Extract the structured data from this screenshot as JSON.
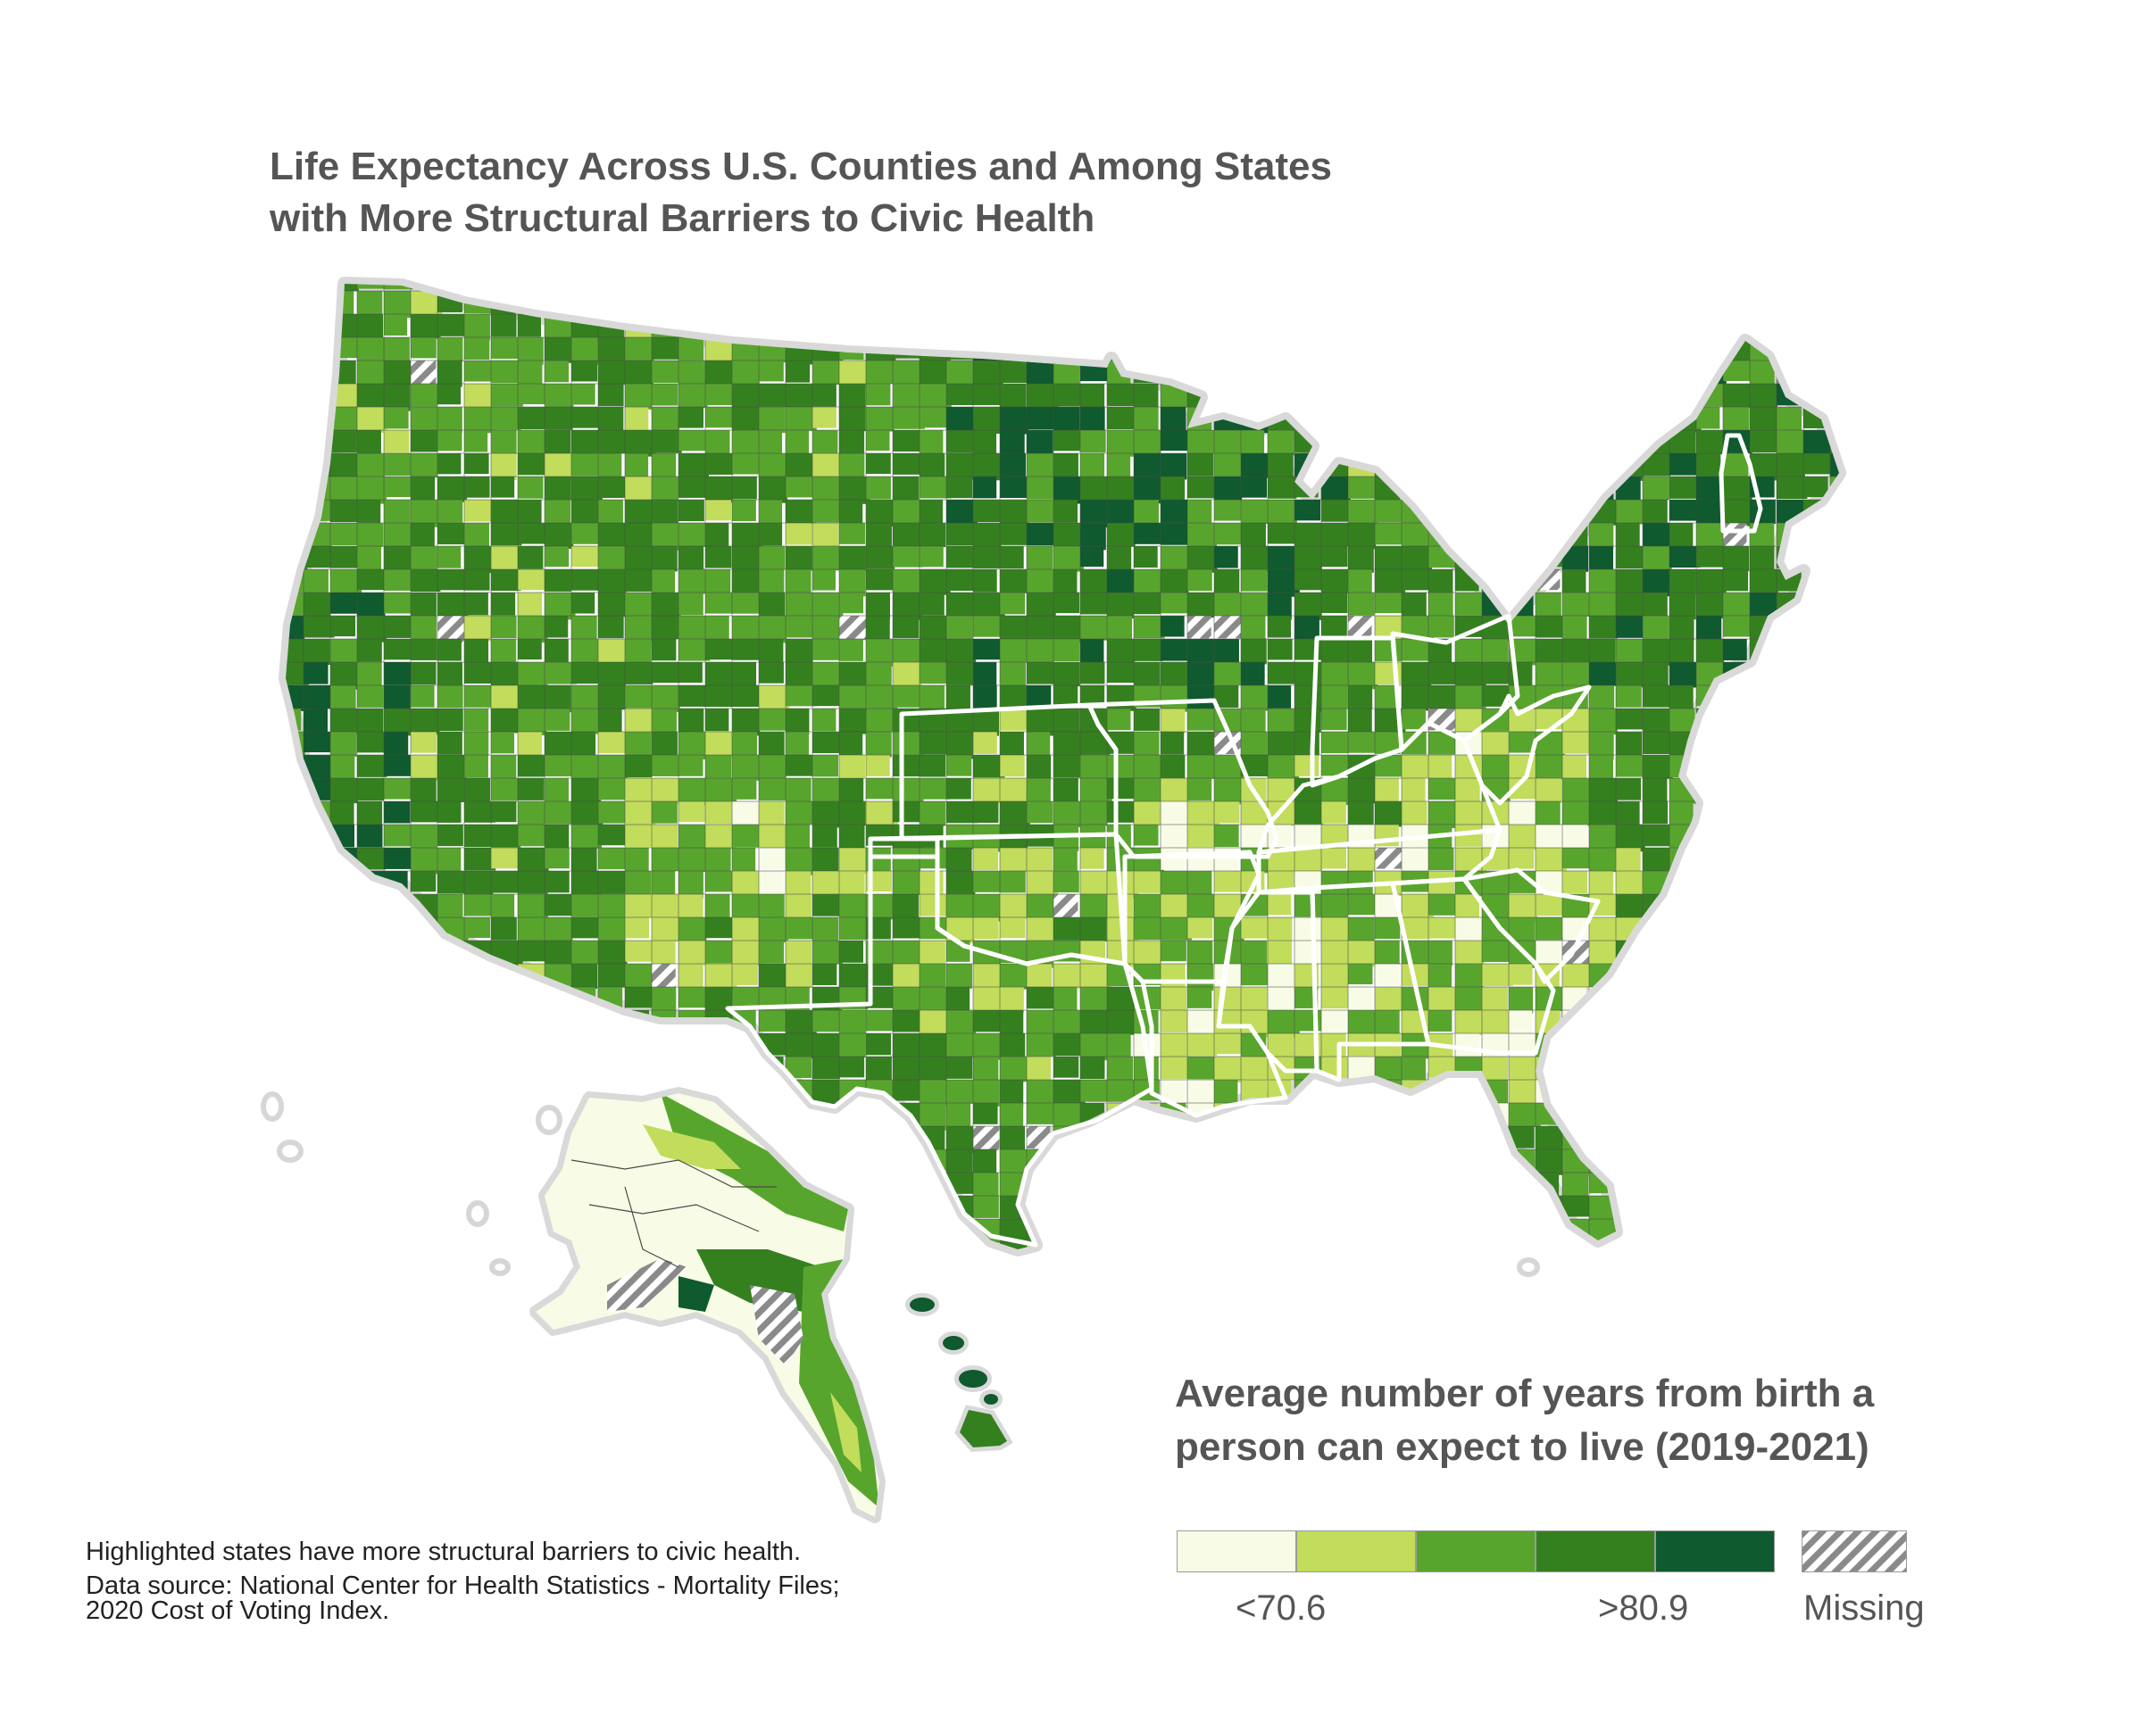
{
  "title": {
    "line1": "Life Expectancy Across U.S. Counties and Among States",
    "line2": "with More Structural Barriers to Civic Health"
  },
  "legend": {
    "title_line1": "Average number of years from birth a",
    "title_line2": "person can expect to live (2019-2021)",
    "bins": [
      {
        "color": "#f8fce6"
      },
      {
        "color": "#c2dc5c"
      },
      {
        "color": "#58a52e"
      },
      {
        "color": "#34801f"
      },
      {
        "color": "#0f5a2e"
      }
    ],
    "low_label": "<70.6",
    "high_label": ">80.9",
    "missing_label": "Missing",
    "missing_color": "#8a8a8a"
  },
  "footnote": {
    "line1": "Highlighted states have more structural barriers to civic health.",
    "line2": "Data source: National Center for Health Statistics - Mortality Files;",
    "line3": "2020 Cost of Voting Index."
  },
  "highlighted_states": [
    "Kansas",
    "Missouri",
    "Oklahoma",
    "Texas",
    "Arkansas",
    "Louisiana",
    "Mississippi",
    "Alabama",
    "Georgia",
    "South Carolina",
    "Tennessee",
    "Kentucky",
    "Indiana",
    "Ohio",
    "West Virginia",
    "New Hampshire"
  ],
  "colors": {
    "state_highlight_outline": "#ffffff",
    "nation_outline": "#d9d9d9",
    "county_line": "#4a4a4a"
  }
}
